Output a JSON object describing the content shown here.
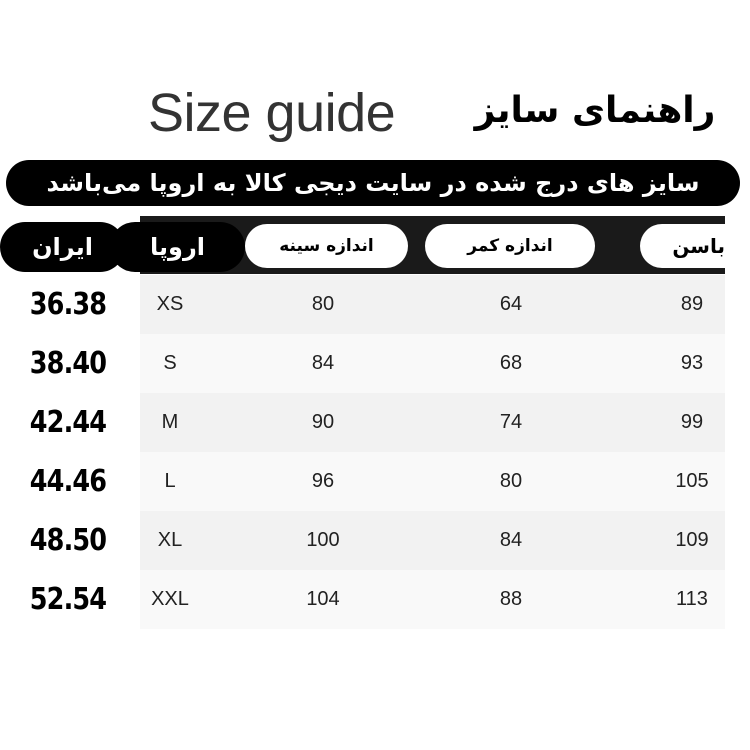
{
  "title_en": "Size guide",
  "title_fa": "راهنمای سایز",
  "banner": "سایز های درج شده در سایت دیجی کالا به اروپا می‌باشد",
  "headers": {
    "iran": "ایران",
    "europe": "اروپا",
    "chest": "اندازه سینه",
    "waist": "اندازه کمر",
    "hip": "باسن"
  },
  "rows": [
    {
      "iran": "36.38",
      "eu": "XS",
      "chest": "80",
      "waist": "64",
      "hip": "89"
    },
    {
      "iran": "38.40",
      "eu": "S",
      "chest": "84",
      "waist": "68",
      "hip": "93"
    },
    {
      "iran": "42.44",
      "eu": "M",
      "chest": "90",
      "waist": "74",
      "hip": "99"
    },
    {
      "iran": "44.46",
      "eu": "L",
      "chest": "96",
      "waist": "80",
      "hip": "105"
    },
    {
      "iran": "48.50",
      "eu": "XL",
      "chest": "100",
      "waist": "84",
      "hip": "109"
    },
    {
      "iran": "52.54",
      "eu": "XXL",
      "chest": "104",
      "waist": "88",
      "hip": "113"
    }
  ]
}
